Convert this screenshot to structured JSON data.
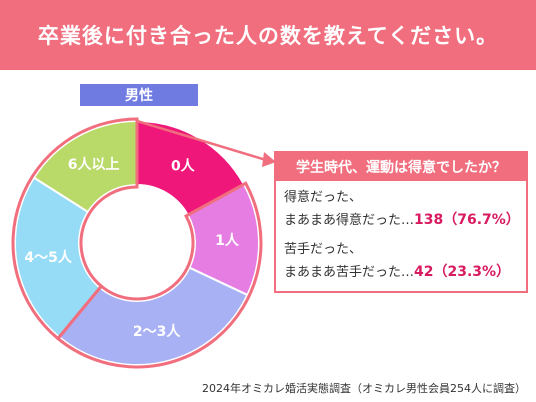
{
  "header": {
    "title": "卒業後に付き合った人の数を教えてください。"
  },
  "gender_tab": "男性",
  "chart_data": {
    "type": "pie",
    "style": "donut",
    "categories": [
      "0人",
      "1人",
      "2〜3人",
      "4〜5人",
      "6人以上"
    ],
    "values": [
      17,
      15,
      29,
      23,
      16
    ],
    "colors": [
      "#f0177a",
      "#e67de3",
      "#a9b1f5",
      "#97dcf7",
      "#b9d968"
    ],
    "highlighted": [
      "1人",
      "2〜3人"
    ]
  },
  "callout": {
    "title": "学生時代、運動は得意でしたか？",
    "rows": [
      {
        "line1": "得意だった、",
        "line2": "まあまあ得意だった…",
        "value": "138（76.7%）"
      },
      {
        "line1": "苦手だった、",
        "line2": "まあまあ苦手だった…",
        "value": "42（23.3%）"
      }
    ]
  },
  "footnote": "2024年オミカレ婚活実態調査（オミカレ男性会員254人に調査）"
}
